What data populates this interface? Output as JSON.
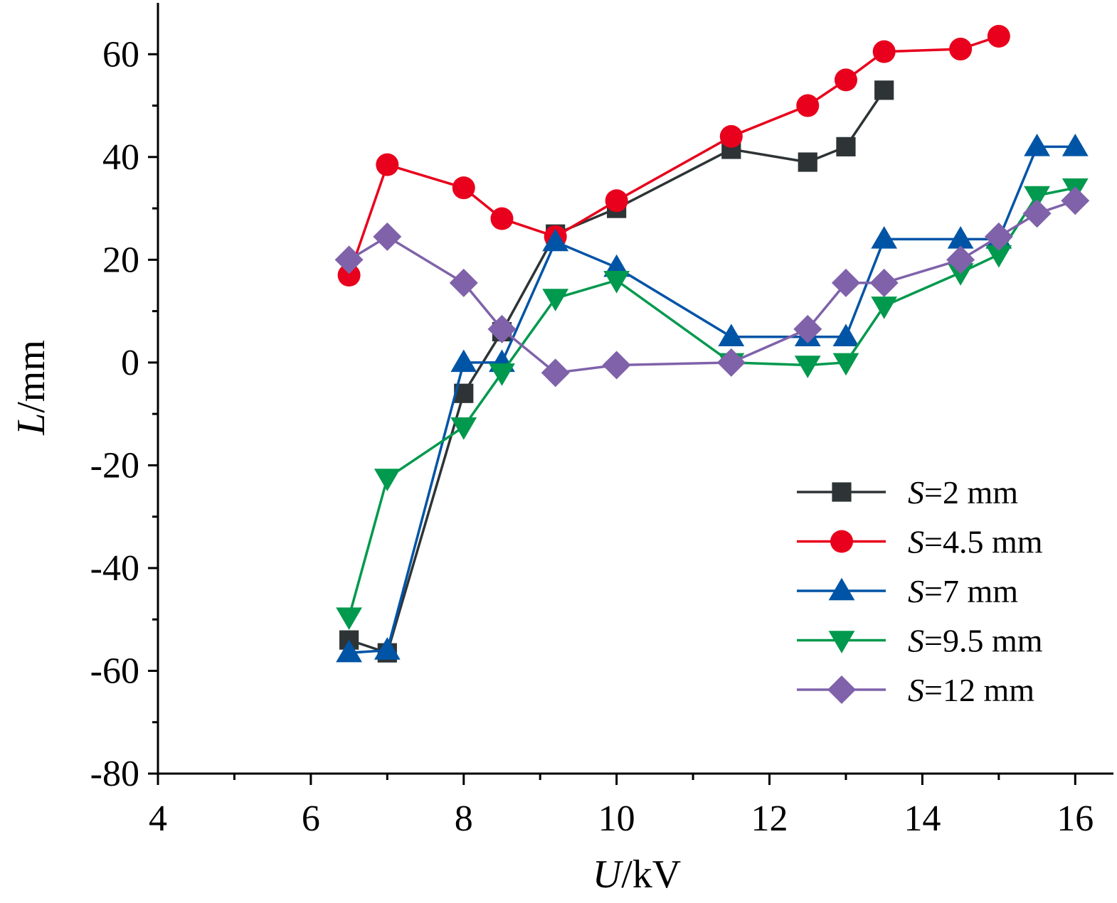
{
  "chart_data": {
    "type": "line",
    "xlabel": {
      "var": "U",
      "unit": "/kV"
    },
    "ylabel": {
      "var": "L",
      "unit": "/mm"
    },
    "xlim": [
      4,
      16.5
    ],
    "ylim": [
      -80,
      70
    ],
    "xticks": [
      4,
      6,
      8,
      10,
      12,
      14,
      16
    ],
    "yticks": [
      -80,
      -60,
      -40,
      -20,
      0,
      20,
      40,
      60
    ],
    "grid": false,
    "legend_position": "bottom-right",
    "series": [
      {
        "name": "S=2 mm",
        "label_var": "S",
        "label_rest": "=2 mm",
        "color": "#2e3436",
        "marker": "square",
        "x": [
          6.5,
          7,
          8,
          8.5,
          9.2,
          10,
          11.5,
          12.5,
          13,
          13.5
        ],
        "y": [
          -54,
          -56.5,
          -6,
          6,
          25,
          30,
          41.5,
          39,
          42,
          53
        ]
      },
      {
        "name": "S=4.5 mm",
        "label_var": "S",
        "label_rest": "=4.5 mm",
        "color": "#e8001c",
        "marker": "circle",
        "x": [
          6.5,
          7,
          8,
          8.5,
          9.2,
          10,
          11.5,
          12.5,
          13,
          13.5,
          14.5,
          15
        ],
        "y": [
          17,
          38.5,
          34,
          28,
          24.5,
          31.5,
          44,
          50,
          55,
          60.5,
          61,
          63.5
        ]
      },
      {
        "name": "S=7 mm",
        "label_var": "S",
        "label_rest": "=7 mm",
        "color": "#0054a6",
        "marker": "triangle-up",
        "x": [
          6.5,
          7,
          8,
          8.5,
          9.2,
          10,
          11.5,
          12.5,
          13,
          13.5,
          14.5,
          15,
          15.5,
          16
        ],
        "y": [
          -56.5,
          -56,
          0,
          0,
          23.5,
          18.5,
          5,
          5,
          5,
          24,
          24,
          24,
          42,
          42
        ]
      },
      {
        "name": "S=9.5 mm",
        "label_var": "S",
        "label_rest": "=9.5 mm",
        "color": "#00994d",
        "marker": "triangle-down",
        "x": [
          6.5,
          7,
          8,
          8.5,
          9.2,
          10,
          11.5,
          12.5,
          13,
          13.5,
          14.5,
          15,
          15.5,
          16
        ],
        "y": [
          -49.5,
          -22.5,
          -12.5,
          -2,
          12.5,
          16,
          0,
          -0.5,
          0,
          11,
          17.5,
          21,
          32.5,
          34
        ]
      },
      {
        "name": "S=12 mm",
        "label_var": "S",
        "label_rest": "=12 mm",
        "color": "#7f62aa",
        "marker": "diamond",
        "x": [
          6.5,
          7,
          8,
          8.5,
          9.2,
          10,
          11.5,
          12.5,
          13,
          13.5,
          14.5,
          15,
          15.5,
          16
        ],
        "y": [
          20,
          24.5,
          15.5,
          6.5,
          -2,
          -0.5,
          0,
          6.5,
          15.5,
          15.5,
          20,
          24.5,
          29,
          31.5
        ]
      }
    ]
  }
}
